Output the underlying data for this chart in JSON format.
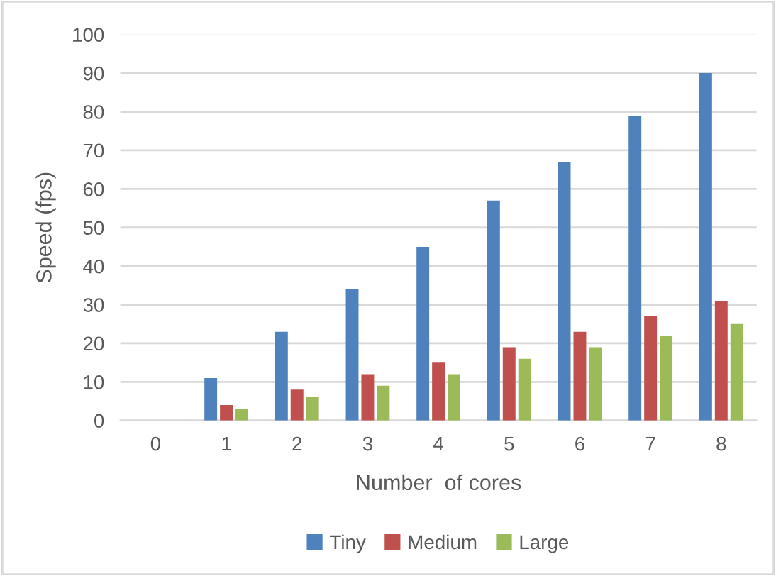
{
  "chart_data": {
    "type": "bar",
    "xlabel": "Number  of cores",
    "ylabel": "Speed (fps)",
    "categories": [
      "0",
      "1",
      "2",
      "3",
      "4",
      "5",
      "6",
      "7",
      "8"
    ],
    "series": [
      {
        "name": "Tiny",
        "color": "#4f81bd",
        "values": [
          0,
          11,
          23,
          34,
          45,
          57,
          67,
          79,
          90
        ]
      },
      {
        "name": "Medium",
        "color": "#c0504d",
        "values": [
          0,
          4,
          8,
          12,
          15,
          19,
          23,
          27,
          31
        ]
      },
      {
        "name": "Large",
        "color": "#9bbb59",
        "values": [
          0,
          3,
          6,
          9,
          12,
          16,
          19,
          22,
          25
        ]
      }
    ],
    "ylim": [
      0,
      100
    ],
    "yticks": [
      0,
      10,
      20,
      30,
      40,
      50,
      60,
      70,
      80,
      90,
      100
    ],
    "grid": "y",
    "legend": "bottom"
  }
}
